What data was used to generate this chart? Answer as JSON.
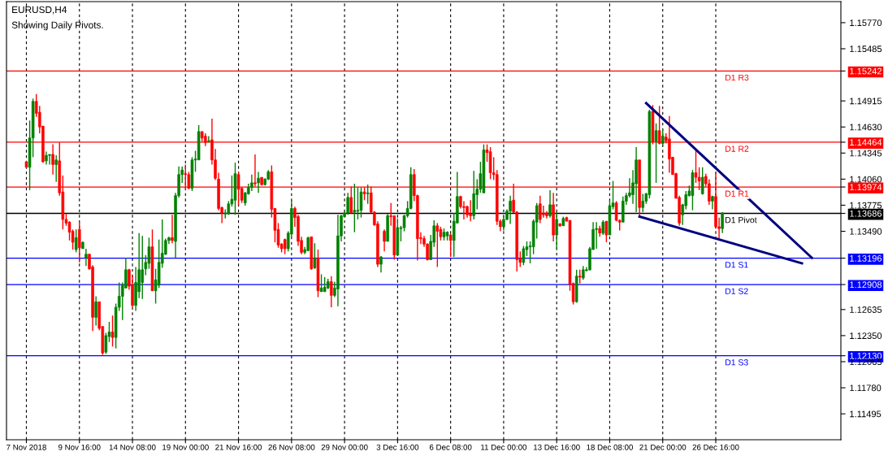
{
  "chart_data": {
    "type": "candlestick",
    "title": "EURUSD,H4",
    "subtitle": "Showing Daily Pivots.",
    "categories": [
      "7 Nov 2018",
      null,
      null,
      null,
      null,
      null,
      null,
      null,
      null,
      null,
      null,
      null,
      null,
      null,
      null,
      null,
      "9 Nov 16:00",
      null,
      null,
      null,
      null,
      null,
      null,
      null,
      null,
      null,
      null,
      null,
      null,
      null,
      null,
      null,
      "14 Nov 08:00",
      null,
      null,
      null,
      null,
      null,
      null,
      null,
      null,
      null,
      null,
      null,
      null,
      null,
      null,
      null,
      "19 Nov 00:00",
      null,
      null,
      null,
      null,
      null,
      null,
      null,
      null,
      null,
      null,
      null,
      null,
      null,
      null,
      null,
      "21 Nov 16:00",
      null,
      null,
      null,
      null,
      null,
      null,
      null,
      null,
      null,
      null,
      null,
      null,
      null,
      null,
      null,
      "26 Nov 08:00",
      null,
      null,
      null,
      null,
      null,
      null,
      null,
      null,
      null,
      null,
      null,
      null,
      null,
      null,
      null,
      "29 Nov 00:00",
      null,
      null,
      null,
      null,
      null,
      null,
      null,
      null,
      null,
      null,
      null,
      null,
      null,
      null,
      null,
      "3 Dec 16:00",
      null,
      null,
      null,
      null,
      null,
      null,
      null,
      null,
      null,
      null,
      null,
      null,
      null,
      null,
      null,
      "6 Dec 08:00",
      null,
      null,
      null,
      null,
      null,
      null,
      null,
      null,
      null,
      null,
      null,
      null,
      null,
      null,
      null,
      "11 Dec 00:00",
      null,
      null,
      null,
      null,
      null,
      null,
      null,
      null,
      null,
      null,
      null,
      null,
      null,
      null,
      null,
      "13 Dec 16:00",
      null,
      null,
      null,
      null,
      null,
      null,
      null,
      null,
      null,
      null,
      null,
      null,
      null,
      null,
      null,
      "18 Dec 08:00",
      null,
      null,
      null,
      null,
      null,
      null,
      null,
      null,
      null,
      null,
      null,
      null,
      null,
      null,
      null,
      "21 Dec 00:00",
      null,
      null,
      null,
      null,
      null,
      null,
      null,
      null,
      null,
      null,
      null,
      null,
      null,
      null,
      null,
      "26 Dec 16:00",
      null,
      null,
      null,
      null,
      null,
      null,
      null,
      null,
      null,
      null,
      null,
      null,
      null,
      null,
      null,
      null,
      null,
      null,
      null,
      null,
      null,
      null,
      null,
      null,
      null,
      null,
      null,
      null,
      null,
      null,
      null,
      null,
      null,
      null,
      null,
      null,
      null
    ],
    "ohlc": [
      [
        1.1425,
        1.1426,
        1.1418,
        1.1419
      ],
      [
        1.1419,
        1.147,
        1.1394,
        1.1451
      ],
      [
        1.1451,
        1.1494,
        1.143,
        1.1491
      ],
      [
        1.1491,
        1.1499,
        1.1474,
        1.1478
      ],
      [
        1.1479,
        1.1486,
        1.1456,
        1.1463
      ],
      [
        1.1464,
        1.1464,
        1.1424,
        1.1425
      ],
      [
        1.1426,
        1.1436,
        1.1422,
        1.1432
      ],
      [
        1.1432,
        1.1433,
        1.1422,
        1.1433
      ],
      [
        1.1433,
        1.1444,
        1.1411,
        1.1422
      ],
      [
        1.1422,
        1.1432,
        1.1403,
        1.1427
      ],
      [
        1.1426,
        1.1446,
        1.1388,
        1.1391
      ],
      [
        1.1392,
        1.141,
        1.1351,
        1.1362
      ],
      [
        1.1362,
        1.1368,
        1.1355,
        1.1358
      ],
      [
        1.1359,
        1.136,
        1.1339,
        1.1348
      ],
      [
        1.1349,
        1.1351,
        1.1329,
        1.1337
      ],
      [
        1.1329,
        1.1351,
        1.1326,
        1.1342
      ],
      [
        1.1351,
        1.1359,
        1.1315,
        1.1331
      ],
      [
        1.133,
        1.1338,
        1.133,
        1.1337
      ],
      [
        1.132,
        1.133,
        1.1311,
        1.1324
      ],
      [
        1.1324,
        1.1324,
        1.1307,
        1.1308
      ],
      [
        1.131,
        1.1312,
        1.124,
        1.1255
      ],
      [
        1.1255,
        1.1278,
        1.1246,
        1.1272
      ],
      [
        1.1272,
        1.1272,
        1.1241,
        1.1243
      ],
      [
        1.1245,
        1.1245,
        1.1214,
        1.1216
      ],
      [
        1.1217,
        1.1238,
        1.1215,
        1.1235
      ],
      [
        1.1234,
        1.125,
        1.1228,
        1.1239
      ],
      [
        1.1239,
        1.1257,
        1.1223,
        1.1233
      ],
      [
        1.1233,
        1.127,
        1.1221,
        1.1266
      ],
      [
        1.1266,
        1.1293,
        1.1262,
        1.1278
      ],
      [
        1.1278,
        1.1293,
        1.1252,
        1.129
      ],
      [
        1.1287,
        1.132,
        1.1287,
        1.1307
      ],
      [
        1.1307,
        1.1308,
        1.1285,
        1.1289
      ],
      [
        1.129,
        1.1301,
        1.1266,
        1.1268
      ],
      [
        1.1268,
        1.131,
        1.1262,
        1.1293
      ],
      [
        1.1283,
        1.1347,
        1.1276,
        1.1307
      ],
      [
        1.1293,
        1.1344,
        1.1275,
        1.1307
      ],
      [
        1.1308,
        1.1323,
        1.1301,
        1.1315
      ],
      [
        1.1314,
        1.1342,
        1.1308,
        1.1332
      ],
      [
        1.1332,
        1.1351,
        1.1284,
        1.1284
      ],
      [
        1.1284,
        1.1308,
        1.127,
        1.1296
      ],
      [
        1.129,
        1.134,
        1.1287,
        1.1315
      ],
      [
        1.1314,
        1.1362,
        1.1309,
        1.1325
      ],
      [
        1.1324,
        1.1341,
        1.1323,
        1.1339
      ],
      [
        1.1339,
        1.1343,
        1.1335,
        1.1342
      ],
      [
        1.1342,
        1.1367,
        1.1336,
        1.1339
      ],
      [
        1.1338,
        1.1391,
        1.132,
        1.1388
      ],
      [
        1.1388,
        1.142,
        1.1386,
        1.1411
      ],
      [
        1.1411,
        1.142,
        1.1402,
        1.1416
      ],
      [
        1.1412,
        1.1422,
        1.1395,
        1.1411
      ],
      [
        1.1411,
        1.1414,
        1.1395,
        1.1396
      ],
      [
        1.1396,
        1.143,
        1.1393,
        1.1427
      ],
      [
        1.1427,
        1.1437,
        1.1414,
        1.1428
      ],
      [
        1.1427,
        1.1465,
        1.1427,
        1.1458
      ],
      [
        1.1458,
        1.1458,
        1.1447,
        1.1451
      ],
      [
        1.1453,
        1.1456,
        1.1442,
        1.1446
      ],
      [
        1.1447,
        1.1453,
        1.1446,
        1.1448
      ],
      [
        1.1449,
        1.1472,
        1.1422,
        1.1427
      ],
      [
        1.1427,
        1.1439,
        1.1405,
        1.1407
      ],
      [
        1.1406,
        1.1413,
        1.1372,
        1.1374
      ],
      [
        1.1375,
        1.1376,
        1.1358,
        1.1369
      ],
      [
        1.1368,
        1.1373,
        1.1363,
        1.1369
      ],
      [
        1.1368,
        1.1382,
        1.1367,
        1.1379
      ],
      [
        1.1379,
        1.141,
        1.1376,
        1.1384
      ],
      [
        1.1383,
        1.1424,
        1.1367,
        1.1412
      ],
      [
        1.1411,
        1.1414,
        1.1377,
        1.1395
      ],
      [
        1.1396,
        1.1397,
        1.138,
        1.1383
      ],
      [
        1.138,
        1.1392,
        1.1377,
        1.1391
      ],
      [
        1.139,
        1.1401,
        1.1389,
        1.1397
      ],
      [
        1.1397,
        1.1411,
        1.1393,
        1.1402
      ],
      [
        1.1402,
        1.1433,
        1.1398,
        1.1401
      ],
      [
        1.1402,
        1.1414,
        1.1391,
        1.1407
      ],
      [
        1.1408,
        1.1408,
        1.1399,
        1.14
      ],
      [
        1.14,
        1.1407,
        1.1399,
        1.1406
      ],
      [
        1.1406,
        1.1416,
        1.1405,
        1.1414
      ],
      [
        1.1414,
        1.1421,
        1.1364,
        1.1373
      ],
      [
        1.1374,
        1.1374,
        1.1337,
        1.135
      ],
      [
        1.1351,
        1.1358,
        1.1331,
        1.1334
      ],
      [
        1.1335,
        1.1336,
        1.1326,
        1.133
      ],
      [
        1.134,
        1.1341,
        1.1324,
        1.133
      ],
      [
        1.133,
        1.1349,
        1.1327,
        1.1347
      ],
      [
        1.1346,
        1.1383,
        1.1343,
        1.1374
      ],
      [
        1.1374,
        1.1376,
        1.1354,
        1.1364
      ],
      [
        1.1365,
        1.1367,
        1.1333,
        1.1338
      ],
      [
        1.1339,
        1.1343,
        1.1324,
        1.1326
      ],
      [
        1.1326,
        1.1332,
        1.1324,
        1.1329
      ],
      [
        1.1328,
        1.1343,
        1.1327,
        1.1342
      ],
      [
        1.1343,
        1.1343,
        1.1307,
        1.1308
      ],
      [
        1.1309,
        1.1336,
        1.1308,
        1.132
      ],
      [
        1.132,
        1.1329,
        1.1277,
        1.1284
      ],
      [
        1.1283,
        1.1302,
        1.1283,
        1.1287
      ],
      [
        1.1283,
        1.1299,
        1.1283,
        1.1288
      ],
      [
        1.1287,
        1.1297,
        1.1286,
        1.1294
      ],
      [
        1.1294,
        1.13,
        1.1266,
        1.1279
      ],
      [
        1.1279,
        1.1294,
        1.1277,
        1.1287
      ],
      [
        1.1286,
        1.1367,
        1.1267,
        1.1344
      ],
      [
        1.1344,
        1.1367,
        1.1338,
        1.1366
      ],
      [
        1.1365,
        1.1371,
        1.1365,
        1.1369
      ],
      [
        1.1369,
        1.1391,
        1.1367,
        1.1386
      ],
      [
        1.1386,
        1.1398,
        1.1369,
        1.1369
      ],
      [
        1.137,
        1.1401,
        1.1348,
        1.1372
      ],
      [
        1.1371,
        1.1397,
        1.1362,
        1.1372
      ],
      [
        1.1372,
        1.1397,
        1.1364,
        1.1392
      ],
      [
        1.1392,
        1.1397,
        1.1383,
        1.139
      ],
      [
        1.139,
        1.14,
        1.1379,
        1.1391
      ],
      [
        1.1391,
        1.1398,
        1.1369,
        1.137
      ],
      [
        1.137,
        1.1371,
        1.1355,
        1.1356
      ],
      [
        1.1357,
        1.136,
        1.131,
        1.1313
      ],
      [
        1.1313,
        1.1322,
        1.1304,
        1.1321
      ],
      [
        1.1349,
        1.1351,
        1.1327,
        1.1338
      ],
      [
        1.1338,
        1.1368,
        1.1338,
        1.1366
      ],
      [
        1.1366,
        1.138,
        1.1355,
        1.1365
      ],
      [
        1.1366,
        1.1366,
        1.1318,
        1.1323
      ],
      [
        1.1323,
        1.1363,
        1.1322,
        1.1353
      ],
      [
        1.1352,
        1.1355,
        1.1338,
        1.1353
      ],
      [
        1.1353,
        1.1367,
        1.1349,
        1.1366
      ],
      [
        1.1366,
        1.1382,
        1.1364,
        1.1374
      ],
      [
        1.1374,
        1.1419,
        1.1373,
        1.1411
      ],
      [
        1.1411,
        1.1417,
        1.1382,
        1.1388
      ],
      [
        1.1388,
        1.1389,
        1.1317,
        1.1341
      ],
      [
        1.1342,
        1.1348,
        1.1335,
        1.1341
      ],
      [
        1.1341,
        1.1344,
        1.1332,
        1.1335
      ],
      [
        1.1335,
        1.1336,
        1.1317,
        1.1318
      ],
      [
        1.1318,
        1.1345,
        1.1318,
        1.1338
      ],
      [
        1.1337,
        1.1361,
        1.1332,
        1.1355
      ],
      [
        1.1355,
        1.1358,
        1.131,
        1.1349
      ],
      [
        1.1351,
        1.1354,
        1.1339,
        1.1343
      ],
      [
        1.1343,
        1.1352,
        1.1339,
        1.1348
      ],
      [
        1.1344,
        1.1349,
        1.1339,
        1.1348
      ],
      [
        1.1345,
        1.1346,
        1.1321,
        1.1339
      ],
      [
        1.1339,
        1.1369,
        1.1321,
        1.136
      ],
      [
        1.1358,
        1.1414,
        1.1358,
        1.1387
      ],
      [
        1.1387,
        1.1388,
        1.1374,
        1.1376
      ],
      [
        1.1376,
        1.1382,
        1.1362,
        1.1375
      ],
      [
        1.1376,
        1.1377,
        1.1364,
        1.1367
      ],
      [
        1.1368,
        1.1383,
        1.136,
        1.1366
      ],
      [
        1.1366,
        1.1415,
        1.1362,
        1.139
      ],
      [
        1.1389,
        1.1406,
        1.1373,
        1.1395
      ],
      [
        1.1395,
        1.1425,
        1.1391,
        1.1412
      ],
      [
        1.1391,
        1.1444,
        1.1391,
        1.1438
      ],
      [
        1.1438,
        1.1444,
        1.1425,
        1.1435
      ],
      [
        1.1436,
        1.1441,
        1.1406,
        1.1413
      ],
      [
        1.1413,
        1.143,
        1.1405,
        1.1411
      ],
      [
        1.1411,
        1.1416,
        1.1356,
        1.136
      ],
      [
        1.136,
        1.1362,
        1.1349,
        1.1354
      ],
      [
        1.1354,
        1.1366,
        1.135,
        1.1362
      ],
      [
        1.1362,
        1.1373,
        1.1361,
        1.1371
      ],
      [
        1.1371,
        1.1388,
        1.1357,
        1.1382
      ],
      [
        1.1383,
        1.1401,
        1.1369,
        1.137
      ],
      [
        1.137,
        1.1371,
        1.1305,
        1.1318
      ],
      [
        1.1319,
        1.1327,
        1.131,
        1.1315
      ],
      [
        1.1315,
        1.1333,
        1.1312,
        1.133
      ],
      [
        1.1329,
        1.1338,
        1.1322,
        1.1332
      ],
      [
        1.1332,
        1.1338,
        1.1314,
        1.1333
      ],
      [
        1.1332,
        1.1362,
        1.1324,
        1.136
      ],
      [
        1.1359,
        1.138,
        1.1341,
        1.1377
      ],
      [
        1.1379,
        1.1388,
        1.1358,
        1.1362
      ],
      [
        1.1369,
        1.1377,
        1.1364,
        1.1367
      ],
      [
        1.1369,
        1.1371,
        1.1363,
        1.1366
      ],
      [
        1.1366,
        1.1394,
        1.1364,
        1.1378
      ],
      [
        1.1378,
        1.1391,
        1.1338,
        1.1345
      ],
      [
        1.1345,
        1.137,
        1.133,
        1.1362
      ],
      [
        1.1357,
        1.1358,
        1.1354,
        1.1355
      ],
      [
        1.1355,
        1.1365,
        1.1355,
        1.1363
      ],
      [
        1.1364,
        1.1365,
        1.136,
        1.136
      ],
      [
        1.1361,
        1.1361,
        1.1284,
        1.1291
      ],
      [
        1.1292,
        1.1293,
        1.1269,
        1.1272
      ],
      [
        1.1272,
        1.1307,
        1.1271,
        1.13
      ],
      [
        1.13,
        1.1307,
        1.1292,
        1.1299
      ],
      [
        1.1298,
        1.1311,
        1.1296,
        1.1307
      ],
      [
        1.1306,
        1.131,
        1.1305,
        1.1307
      ],
      [
        1.1307,
        1.1332,
        1.1306,
        1.133
      ],
      [
        1.1329,
        1.1359,
        1.1329,
        1.1351
      ],
      [
        1.1351,
        1.1359,
        1.133,
        1.1352
      ],
      [
        1.1352,
        1.1355,
        1.1343,
        1.1347
      ],
      [
        1.1347,
        1.1361,
        1.1345,
        1.1359
      ],
      [
        1.136,
        1.136,
        1.1337,
        1.1345
      ],
      [
        1.1345,
        1.1383,
        1.1345,
        1.1377
      ],
      [
        1.1376,
        1.1404,
        1.1373,
        1.138
      ],
      [
        1.138,
        1.1382,
        1.136,
        1.1361
      ],
      [
        1.1361,
        1.1362,
        1.135,
        1.1359
      ],
      [
        1.1359,
        1.1387,
        1.1359,
        1.1382
      ],
      [
        1.1382,
        1.1391,
        1.1378,
        1.1388
      ],
      [
        1.1388,
        1.1407,
        1.1386,
        1.1391
      ],
      [
        1.1389,
        1.1416,
        1.1379,
        1.1402
      ],
      [
        1.1401,
        1.1441,
        1.137,
        1.1427
      ],
      [
        1.1427,
        1.1427,
        1.1364,
        1.1375
      ],
      [
        1.1375,
        1.139,
        1.137,
        1.1382
      ],
      [
        1.1382,
        1.1391,
        1.1379,
        1.139
      ],
      [
        1.1389,
        1.1482,
        1.1385,
        1.148
      ],
      [
        1.148,
        1.1487,
        1.1444,
        1.1447
      ],
      [
        1.1447,
        1.1467,
        1.1402,
        1.1459
      ],
      [
        1.1459,
        1.1486,
        1.1444,
        1.1445
      ],
      [
        1.1445,
        1.1461,
        1.1442,
        1.1453
      ],
      [
        1.1452,
        1.1456,
        1.1445,
        1.1448
      ],
      [
        1.145,
        1.1475,
        1.1413,
        1.1428
      ],
      [
        1.143,
        1.143,
        1.1411,
        1.1411
      ],
      [
        1.1412,
        1.1413,
        1.1385,
        1.1385
      ],
      [
        1.1386,
        1.1388,
        1.1355,
        1.1358
      ],
      [
        1.1367,
        1.1379,
        1.1356,
        1.1378
      ],
      [
        1.1377,
        1.1393,
        1.1373,
        1.1389
      ],
      [
        1.1388,
        1.1399,
        1.1387,
        1.1393
      ],
      [
        1.1388,
        1.1416,
        1.1372,
        1.1413
      ],
      [
        1.1413,
        1.1438,
        1.1402,
        1.1408
      ],
      [
        1.1408,
        1.1419,
        1.1394,
        1.1404
      ],
      [
        1.139,
        1.1419,
        1.1389,
        1.1408
      ],
      [
        1.1409,
        1.1412,
        1.1398,
        1.1401
      ],
      [
        1.1401,
        1.1406,
        1.1378,
        1.1382
      ],
      [
        1.1382,
        1.1388,
        1.1373,
        1.1387
      ],
      [
        1.1387,
        1.1413,
        1.1352,
        1.1354
      ],
      [
        1.1354,
        1.1364,
        1.1341,
        1.1352
      ],
      [
        1.1352,
        1.137,
        1.1347,
        1.1369
      ],
      null,
      null,
      null,
      null,
      null,
      null,
      null,
      null,
      null,
      null,
      null,
      null,
      null,
      null,
      null,
      null,
      null,
      null,
      null,
      null,
      null,
      null,
      null,
      null,
      null,
      null,
      null,
      null,
      null,
      null,
      null,
      null,
      null,
      null,
      null
    ],
    "colors": [
      "#ff0000",
      "#008000",
      "#008000",
      "#ff0000",
      "#ff0000",
      "#ff0000",
      "#008000",
      "#008000",
      "#ff0000",
      "#008000",
      "#ff0000",
      "#ff0000",
      "#ff0000",
      "#ff0000",
      "#ff0000",
      "#008000",
      "#ff0000",
      "#008000",
      "#008000",
      "#ff0000",
      "#ff0000",
      "#008000",
      "#ff0000",
      "#ff0000",
      "#008000",
      "#008000",
      "#ff0000",
      "#008000",
      "#008000",
      "#008000",
      "#008000",
      "#ff0000",
      "#ff0000",
      "#008000",
      "#008000",
      "#008000",
      "#008000",
      "#008000",
      "#ff0000",
      "#008000",
      "#008000",
      "#008000",
      "#008000",
      "#008000",
      "#ff0000",
      "#008000",
      "#008000",
      "#008000",
      "#ff0000",
      "#ff0000",
      "#008000",
      "#008000",
      "#008000",
      "#ff0000",
      "#ff0000",
      "#008000",
      "#ff0000",
      "#ff0000",
      "#ff0000",
      "#ff0000",
      "#008000",
      "#008000",
      "#008000",
      "#008000",
      "#ff0000",
      "#ff0000",
      "#008000",
      "#008000",
      "#008000",
      "#ff0000",
      "#008000",
      "#ff0000",
      "#008000",
      "#008000",
      "#ff0000",
      "#ff0000",
      "#ff0000",
      "#ff0000",
      "#ff0000",
      "#008000",
      "#008000",
      "#ff0000",
      "#ff0000",
      "#ff0000",
      "#008000",
      "#008000",
      "#ff0000",
      "#008000",
      "#ff0000",
      "#008000",
      "#008000",
      "#008000",
      "#ff0000",
      "#008000",
      "#008000",
      "#008000",
      "#008000",
      "#008000",
      "#ff0000",
      "#008000",
      "#008000",
      "#008000",
      "#ff0000",
      "#008000",
      "#ff0000",
      "#ff0000",
      "#ff0000",
      "#008000",
      "#ff0000",
      "#008000",
      "#ff0000",
      "#ff0000",
      "#008000",
      "#008000",
      "#008000",
      "#008000",
      "#008000",
      "#ff0000",
      "#ff0000",
      "#ff0000",
      "#ff0000",
      "#ff0000",
      "#008000",
      "#008000",
      "#ff0000",
      "#ff0000",
      "#008000",
      "#008000",
      "#ff0000",
      "#008000",
      "#008000",
      "#ff0000",
      "#ff0000",
      "#ff0000",
      "#ff0000",
      "#008000",
      "#008000",
      "#008000",
      "#008000",
      "#ff0000",
      "#ff0000",
      "#ff0000",
      "#ff0000",
      "#ff0000",
      "#008000",
      "#008000",
      "#008000",
      "#ff0000",
      "#ff0000",
      "#ff0000",
      "#008000",
      "#008000",
      "#008000",
      "#008000",
      "#008000",
      "#ff0000",
      "#ff0000",
      "#ff0000",
      "#008000",
      "#ff0000",
      "#008000",
      "#ff0000",
      "#008000",
      "#ff0000",
      "#ff0000",
      "#ff0000",
      "#008000",
      "#ff0000",
      "#008000",
      "#008000",
      "#008000",
      "#008000",
      "#008000",
      "#ff0000",
      "#008000",
      "#ff0000",
      "#008000",
      "#008000",
      "#ff0000",
      "#ff0000",
      "#008000",
      "#008000",
      "#008000",
      "#008000",
      "#008000",
      "#ff0000",
      "#008000",
      "#008000",
      "#008000",
      "#ff0000",
      "#008000",
      "#ff0000",
      "#008000",
      "#ff0000",
      "#ff0000",
      "#ff0000",
      "#ff0000",
      "#ff0000",
      "#008000",
      "#008000",
      "#008000",
      "#008000",
      "#ff0000",
      "#ff0000",
      "#008000",
      "#ff0000",
      "#ff0000",
      "#008000",
      "#ff0000",
      "#ff0000",
      "#008000",
      null,
      null,
      null,
      null,
      null,
      null,
      null,
      null,
      null,
      null,
      null,
      null,
      null,
      null,
      null,
      null,
      null,
      null,
      null,
      null,
      null,
      null,
      null,
      null,
      null,
      null,
      null,
      null,
      null,
      null,
      null,
      null,
      null,
      null,
      null
    ],
    "series": [
      {
        "type": "line",
        "color": "#000080",
        "values": [
          null,
          null,
          null,
          null,
          null,
          null,
          null,
          null,
          null,
          null,
          null,
          null,
          null,
          null,
          null,
          null,
          null,
          null,
          null,
          null,
          null,
          null,
          null,
          null,
          null,
          null,
          null,
          null,
          null,
          null,
          null,
          null,
          null,
          null,
          null,
          null,
          null,
          null,
          null,
          null,
          null,
          null,
          null,
          null,
          null,
          null,
          null,
          null,
          null,
          null,
          null,
          null,
          null,
          null,
          null,
          null,
          null,
          null,
          null,
          null,
          null,
          null,
          null,
          null,
          null,
          null,
          null,
          null,
          null,
          null,
          null,
          null,
          null,
          null,
          null,
          null,
          null,
          null,
          null,
          null,
          null,
          null,
          null,
          null,
          null,
          null,
          null,
          null,
          null,
          null,
          null,
          null,
          null,
          null,
          null,
          null,
          null,
          null,
          null,
          null,
          null,
          null,
          null,
          null,
          null,
          null,
          null,
          null,
          null,
          null,
          null,
          null,
          null,
          null,
          null,
          null,
          null,
          null,
          null,
          null,
          null,
          null,
          null,
          null,
          null,
          null,
          null,
          null,
          null,
          null,
          null,
          null,
          null,
          null,
          null,
          null,
          null,
          null,
          null,
          null,
          null,
          null,
          null,
          null,
          null,
          null,
          null,
          null,
          null,
          null,
          null,
          null,
          null,
          null,
          null,
          null,
          null,
          null,
          null,
          null,
          null,
          null,
          null,
          null,
          null,
          null,
          null,
          null,
          null,
          null,
          null,
          null,
          null,
          null,
          null,
          null,
          null,
          null,
          null,
          null,
          null,
          null,
          null,
          null,
          null,
          null,
          null,
          1.1489,
          null,
          null,
          null,
          null,
          null,
          null,
          null,
          null,
          null,
          null,
          null,
          null,
          null,
          null,
          null,
          null,
          null,
          null,
          null,
          null,
          null,
          null,
          null,
          null,
          null,
          null,
          null,
          null,
          null,
          null,
          null,
          null,
          null,
          null,
          null,
          null,
          null,
          null,
          null,
          null,
          null,
          null,
          null,
          null,
          null,
          null,
          null,
          null,
          null,
          1.132,
          null,
          null,
          null,
          null,
          null,
          null,
          null,
          null
        ]
      },
      {
        "type": "line",
        "color": "#000080",
        "values": [
          null,
          null,
          null,
          null,
          null,
          null,
          null,
          null,
          null,
          null,
          null,
          null,
          null,
          null,
          null,
          null,
          null,
          null,
          null,
          null,
          null,
          null,
          null,
          null,
          null,
          null,
          null,
          null,
          null,
          null,
          null,
          null,
          null,
          null,
          null,
          null,
          null,
          null,
          null,
          null,
          null,
          null,
          null,
          null,
          null,
          null,
          null,
          null,
          null,
          null,
          null,
          null,
          null,
          null,
          null,
          null,
          null,
          null,
          null,
          null,
          null,
          null,
          null,
          null,
          null,
          null,
          null,
          null,
          null,
          null,
          null,
          null,
          null,
          null,
          null,
          null,
          null,
          null,
          null,
          null,
          null,
          null,
          null,
          null,
          null,
          null,
          null,
          null,
          null,
          null,
          null,
          null,
          null,
          null,
          null,
          null,
          null,
          null,
          null,
          null,
          null,
          null,
          null,
          null,
          null,
          null,
          null,
          null,
          null,
          null,
          null,
          null,
          null,
          null,
          null,
          null,
          null,
          null,
          null,
          null,
          null,
          null,
          null,
          null,
          null,
          null,
          null,
          null,
          null,
          null,
          null,
          null,
          null,
          null,
          null,
          null,
          null,
          null,
          null,
          null,
          null,
          null,
          null,
          null,
          null,
          null,
          null,
          null,
          null,
          null,
          null,
          null,
          null,
          null,
          null,
          null,
          null,
          null,
          null,
          null,
          null,
          null,
          null,
          null,
          null,
          null,
          null,
          null,
          null,
          null,
          null,
          null,
          null,
          null,
          null,
          null,
          null,
          null,
          null,
          null,
          null,
          null,
          null,
          null,
          null,
          1.1365,
          null,
          null,
          null,
          null,
          null,
          null,
          null,
          null,
          null,
          null,
          null,
          null,
          null,
          null,
          null,
          null,
          null,
          null,
          null,
          null,
          null,
          null,
          null,
          null,
          null,
          null,
          null,
          null,
          null,
          null,
          null,
          null,
          null,
          null,
          null,
          null,
          null,
          null,
          null,
          null,
          null,
          null,
          null,
          null,
          null,
          null,
          null,
          null,
          1.1314,
          null,
          null,
          null,
          null,
          null,
          null,
          null,
          null,
          null,
          null,
          null
        ]
      }
    ],
    "ylim": [
      1.11212,
      1.16
    ],
    "yticks": [
      {
        "value": 1.1577,
        "label": "1.15770"
      },
      {
        "value": 1.15485,
        "label": "1.15485"
      },
      {
        "value": 1.15242,
        "label": "1.15242"
      },
      {
        "value": 1.14915,
        "label": "1.14915"
      },
      {
        "value": 1.1463,
        "label": "1.14630"
      },
      {
        "value": 1.14464,
        "label": "1.14464"
      },
      {
        "value": 1.14345,
        "label": "1.14345"
      },
      {
        "value": 1.1406,
        "label": "1.14060"
      },
      {
        "value": 1.13974,
        "label": "1.13974"
      },
      {
        "value": 1.13775,
        "label": "1.13775"
      },
      {
        "value": 1.13686,
        "label": "1.13686"
      },
      {
        "value": 1.1349,
        "label": "1.13490"
      },
      {
        "value": 1.13196,
        "label": "1.13196"
      },
      {
        "value": 1.12908,
        "label": "1.12908"
      },
      {
        "value": 1.12635,
        "label": "1.12635"
      },
      {
        "value": 1.1235,
        "label": "1.12350"
      },
      {
        "value": 1.1213,
        "label": "1.12130"
      },
      {
        "value": 1.12065,
        "label": "1.12065"
      },
      {
        "value": 1.1178,
        "label": "1.11780"
      },
      {
        "value": 1.11495,
        "label": "1.11495"
      }
    ],
    "ref_lines": [
      {
        "axis": "y",
        "value": 1.15242,
        "label": "D1 R3",
        "color": "#ff0000"
      },
      {
        "axis": "y",
        "value": 1.14464,
        "label": "D1 R2",
        "color": "#ff0000"
      },
      {
        "axis": "y",
        "value": 1.13974,
        "label": "D1 R1",
        "color": "#ff0000"
      },
      {
        "axis": "y",
        "value": 1.13686,
        "label": "D1 Pivot",
        "color": "#000000"
      },
      {
        "axis": "y",
        "value": 1.13196,
        "label": "D1 S1",
        "color": "#0000ff"
      },
      {
        "axis": "y",
        "value": 1.12908,
        "label": "D1 S2",
        "color": "#0000ff"
      },
      {
        "axis": "y",
        "value": 1.1213,
        "label": "D1 S3",
        "color": "#0000ff"
      }
    ],
    "grid": "x"
  }
}
